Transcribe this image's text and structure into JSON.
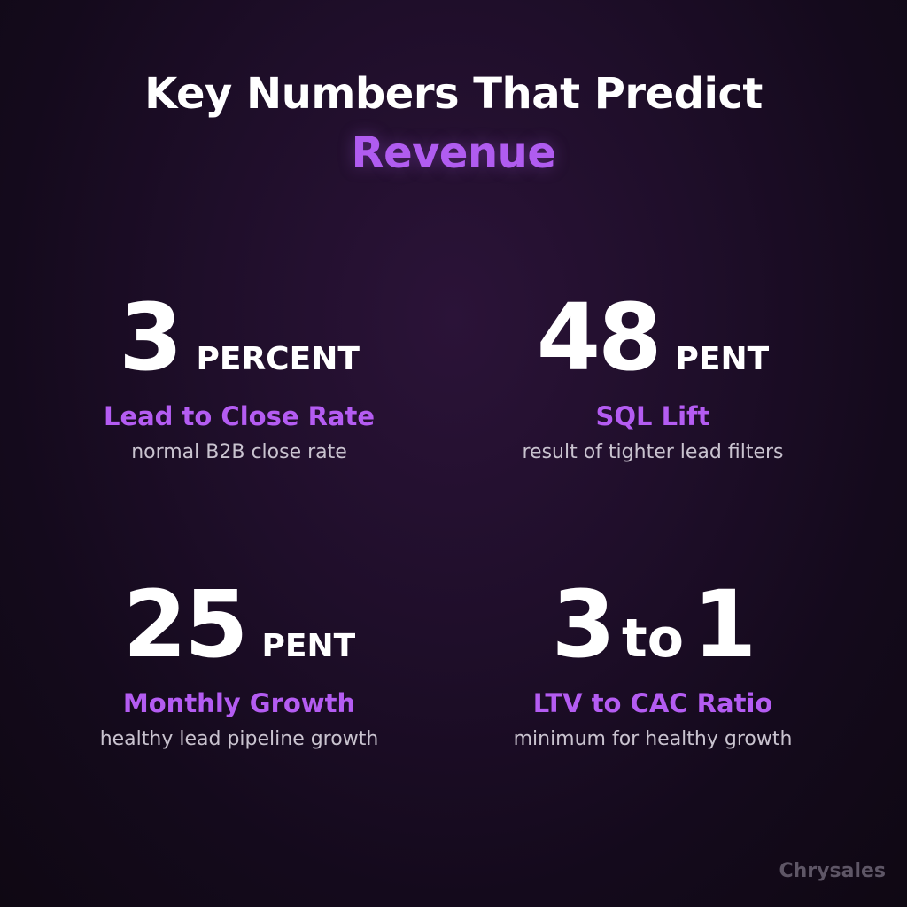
{
  "title": {
    "line1": "Key Numbers That Predict",
    "line2": "Revenue"
  },
  "stats": [
    {
      "value": "3",
      "unit": "PERCENT",
      "label": "Lead to Close Rate",
      "description": "normal B2B close rate"
    },
    {
      "value": "48",
      "unit": "PENT",
      "label": "SQL Lift",
      "description": "result of tighter lead filters"
    },
    {
      "value": "25",
      "unit": "PENT",
      "label": "Monthly Growth",
      "description": "healthy lead pipeline growth"
    },
    {
      "value_left": "3",
      "connector": "to",
      "value_right": "1",
      "label": "LTV to CAC Ratio",
      "description": "minimum for healthy growth"
    }
  ],
  "watermark": "Chrysales",
  "colors": {
    "accent": "#b45cf2",
    "background": "#1f0e2a",
    "text": "#ffffff",
    "description": "#c9c3cf"
  }
}
